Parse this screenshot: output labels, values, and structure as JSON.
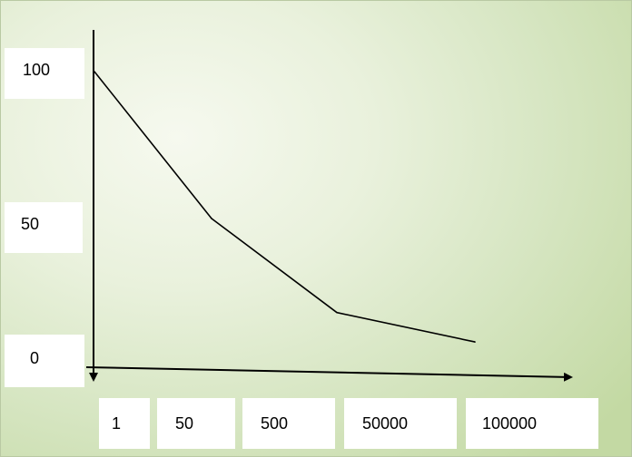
{
  "chart_data": {
    "type": "line",
    "x_tick_labels": [
      "1",
      "50",
      "500",
      "50000",
      "100000"
    ],
    "y_tick_labels": [
      "100",
      "50",
      "0"
    ],
    "series": [
      {
        "points": [
          {
            "x": "1",
            "y": 100
          },
          {
            "x": "50",
            "y": 50
          },
          {
            "x": "500",
            "y": 18
          },
          {
            "x": "50000",
            "y": 8
          }
        ]
      }
    ],
    "ylim": [
      0,
      100
    ],
    "x_scale": "categorical",
    "grid": false,
    "legend": "none",
    "line_color": "#000000",
    "background": "#dfead0"
  }
}
